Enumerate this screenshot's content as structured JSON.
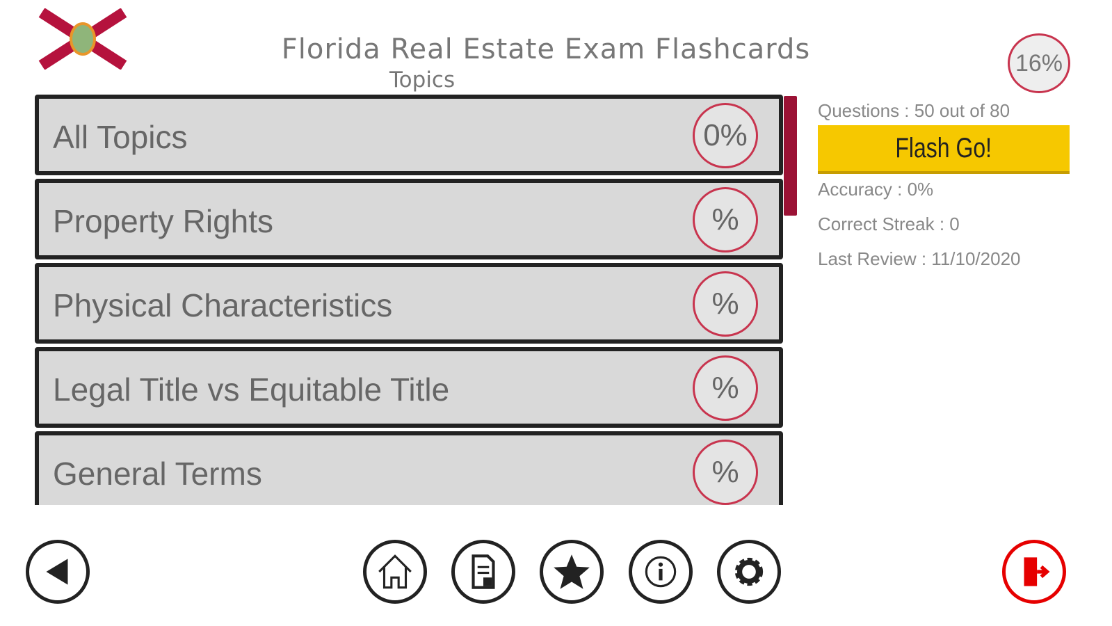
{
  "header": {
    "title": "Florida Real Estate Exam Flashcards",
    "subtitle": "Topics",
    "overall_progress": "16%"
  },
  "topics": [
    {
      "label": "All Topics",
      "progress": "0%"
    },
    {
      "label": "Property Rights",
      "progress": "%"
    },
    {
      "label": "Physical Characteristics",
      "progress": "%"
    },
    {
      "label": "Legal Title vs Equitable Title",
      "progress": "%"
    },
    {
      "label": "General Terms",
      "progress": "%"
    }
  ],
  "stats": {
    "questions": "Questions : 50 out of 80",
    "flash_go": "Flash Go!",
    "accuracy": "Accuracy : 0%",
    "streak": "Correct Streak : 0",
    "last_review": "Last Review : 11/10/2020"
  },
  "toolbar": [
    "back-icon",
    "home-icon",
    "document-icon",
    "star-icon",
    "info-icon",
    "gear-icon",
    "exit-icon"
  ],
  "colors": {
    "accent": "#c8344e",
    "scrollbar": "#9b1235",
    "button": "#f6c800",
    "exit": "#e60000"
  }
}
